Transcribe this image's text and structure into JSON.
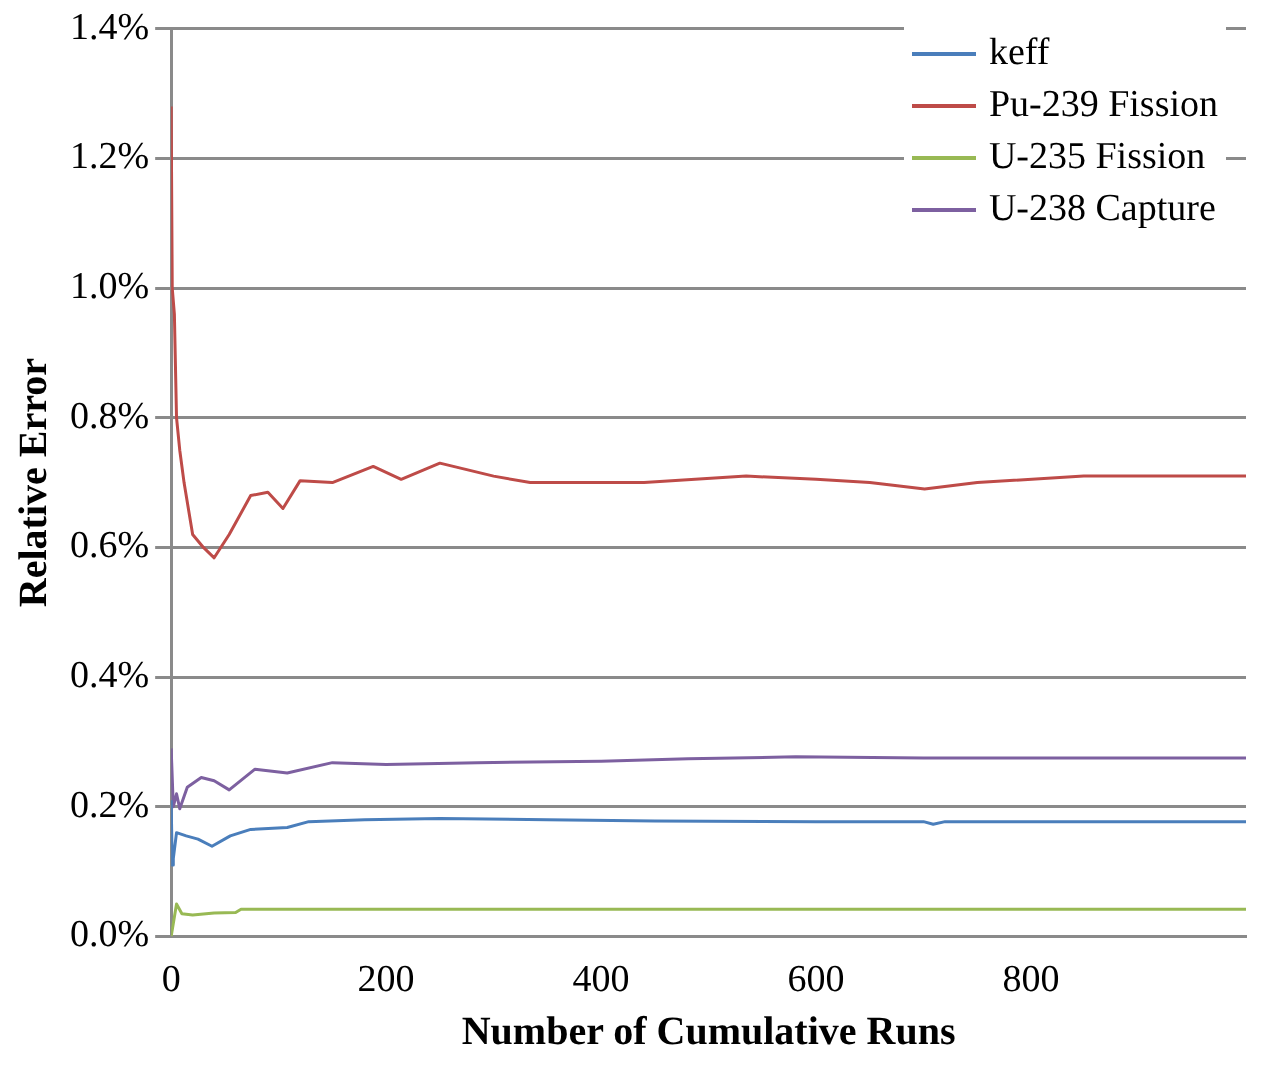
{
  "chart_data": {
    "type": "line",
    "xlabel": "Number of Cumulative Runs",
    "ylabel": "Relative Error",
    "xlim": [
      0,
      1000
    ],
    "xticks": [
      0,
      200,
      400,
      600,
      800
    ],
    "ylim": [
      0,
      1.4
    ],
    "yticks": [
      {
        "value": 0,
        "label": "0.0%"
      },
      {
        "value": 0.2,
        "label": "0.2%"
      },
      {
        "value": 0.4,
        "label": "0.4%"
      },
      {
        "value": 0.6,
        "label": "0.6%"
      },
      {
        "value": 0.8,
        "label": "0.8%"
      },
      {
        "value": 1.0,
        "label": "1.0%"
      },
      {
        "value": 1.2,
        "label": "1.2%"
      },
      {
        "value": 1.4,
        "label": "1.4%"
      }
    ],
    "grid": "y",
    "legend": "top right",
    "marker": "none",
    "line_style": "solid",
    "series": [
      {
        "name": "keff",
        "color": "#4a7ebb",
        "x": [
          0,
          1,
          2,
          5,
          14,
          25,
          38,
          55,
          74,
          108,
          128,
          180,
          250,
          350,
          450,
          600,
          700,
          709,
          720,
          850,
          1000
        ],
        "values": [
          0.21,
          0.11,
          0.12,
          0.16,
          0.155,
          0.15,
          0.139,
          0.155,
          0.165,
          0.168,
          0.177,
          0.18,
          0.182,
          0.18,
          0.178,
          0.177,
          0.177,
          0.173,
          0.177,
          0.177,
          0.177
        ]
      },
      {
        "name": "Pu-239 Fission",
        "color": "#be4b48",
        "x": [
          0,
          1,
          3,
          5,
          8,
          12,
          20,
          30,
          40,
          54,
          74,
          90,
          104,
          120,
          150,
          188,
          214,
          250,
          300,
          334,
          440,
          535,
          600,
          650,
          701,
          750,
          849,
          1000
        ],
        "values": [
          1.28,
          1.0,
          0.96,
          0.8,
          0.75,
          0.7,
          0.62,
          0.6,
          0.584,
          0.62,
          0.68,
          0.685,
          0.66,
          0.703,
          0.7,
          0.725,
          0.705,
          0.73,
          0.71,
          0.7,
          0.7,
          0.71,
          0.705,
          0.7,
          0.69,
          0.7,
          0.71,
          0.71
        ]
      },
      {
        "name": "U-235 Fission",
        "color": "#98b954",
        "x": [
          0,
          3,
          5,
          10,
          20,
          40,
          60,
          65,
          200,
          500,
          1000
        ],
        "values": [
          0,
          0.03,
          0.05,
          0.035,
          0.033,
          0.036,
          0.037,
          0.042,
          0.042,
          0.042,
          0.042
        ]
      },
      {
        "name": "U-238 Capture",
        "color": "#7d60a0",
        "x": [
          0,
          2,
          5,
          8,
          15,
          28,
          40,
          54,
          78,
          108,
          150,
          200,
          285,
          400,
          481,
          581,
          700,
          850,
          1000
        ],
        "values": [
          0.29,
          0.2,
          0.22,
          0.197,
          0.23,
          0.245,
          0.24,
          0.226,
          0.258,
          0.252,
          0.268,
          0.265,
          0.268,
          0.27,
          0.274,
          0.277,
          0.275,
          0.275,
          0.275
        ]
      }
    ]
  }
}
